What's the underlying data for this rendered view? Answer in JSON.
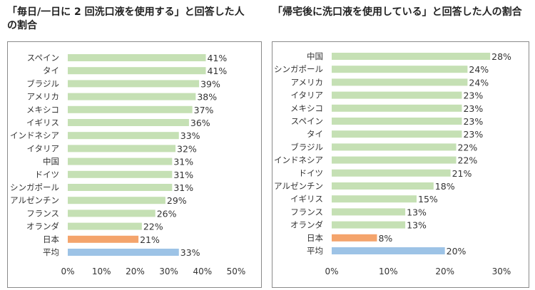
{
  "chart_data": [
    {
      "type": "bar",
      "orientation": "horizontal",
      "title": "「毎日/一日に 2 回洗口液を使用する」と回答した人の割合",
      "categories": [
        "スペイン",
        "タイ",
        "ブラジル",
        "アメリカ",
        "メキシコ",
        "イギリス",
        "インドネシア",
        "イタリア",
        "中国",
        "ドイツ",
        "シンガポール",
        "アルゼンチン",
        "フランス",
        "オランダ",
        "日本",
        "平均"
      ],
      "values": [
        41,
        41,
        39,
        38,
        37,
        36,
        33,
        32,
        31,
        31,
        31,
        29,
        26,
        22,
        21,
        33
      ],
      "value_labels": [
        "41%",
        "41%",
        "39%",
        "38%",
        "37%",
        "36%",
        "33%",
        "32%",
        "31%",
        "31%",
        "31%",
        "29%",
        "26%",
        "22%",
        "21%",
        "33%"
      ],
      "xlim": [
        0,
        50
      ],
      "xticks": [
        "0%",
        "10%",
        "20%",
        "30%",
        "40%",
        "50%"
      ],
      "grid": false,
      "colors": {
        "default": "#c5e0b4",
        "日本": "#f4a46c",
        "平均": "#9dc3e6"
      }
    },
    {
      "type": "bar",
      "orientation": "horizontal",
      "title": "「帰宅後に洗口液を使用している」と回答した人の割合",
      "categories": [
        "中国",
        "シンガポール",
        "アメリカ",
        "イタリア",
        "メキシコ",
        "スペイン",
        "タイ",
        "ブラジル",
        "インドネシア",
        "ドイツ",
        "アルゼンチン",
        "イギリス",
        "フランス",
        "オランダ",
        "日本",
        "平均"
      ],
      "values": [
        28,
        24,
        24,
        23,
        23,
        23,
        23,
        22,
        22,
        21,
        18,
        15,
        13,
        13,
        8,
        20
      ],
      "value_labels": [
        "28%",
        "24%",
        "24%",
        "23%",
        "23%",
        "23%",
        "23%",
        "22%",
        "22%",
        "21%",
        "18%",
        "15%",
        "13%",
        "13%",
        "8%",
        "20%"
      ],
      "xlim": [
        0,
        30
      ],
      "xticks": [
        "0%",
        "10%",
        "20%",
        "30%"
      ],
      "grid": false,
      "colors": {
        "default": "#c5e0b4",
        "日本": "#f4a46c",
        "平均": "#9dc3e6"
      }
    }
  ]
}
